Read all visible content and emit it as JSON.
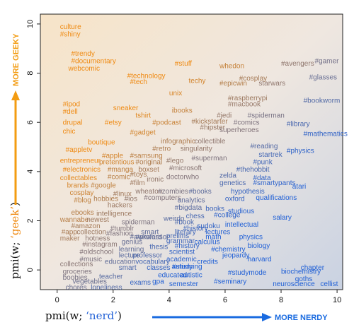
{
  "chart_data": {
    "type": "scatter",
    "title": "",
    "xlabel_prefix": "pmi(w; ",
    "xlabel_term": "‘nerd’",
    "xlabel_suffix": ")",
    "ylabel_prefix": "pmi(w; ",
    "ylabel_term": "‘geek’",
    "ylabel_suffix": ")",
    "x_arrow_label": "MORE NERDY",
    "y_arrow_label": "MORE GEEKY",
    "xlim": [
      -0.6,
      10.2
    ],
    "ylim": [
      -0.8,
      10.4
    ],
    "x_ticks": [
      "0",
      "2",
      "4",
      "6",
      "8",
      "10"
    ],
    "y_ticks": [
      "0",
      "2",
      "4",
      "6",
      "8",
      "10"
    ],
    "grid": false,
    "colors": {
      "geek": "#ef8a12",
      "nerd": "#1f5fd6",
      "mid": "#8a7f90",
      "arrow_y": "#f39c12",
      "arrow_x": "#1a6be0",
      "bg_geek": "#f6e6cf",
      "bg_nerd": "#cfd6e3"
    },
    "points": [
      {
        "label": "culture",
        "x": 0.1,
        "y": 9.8
      },
      {
        "label": "#shiny",
        "x": 0.1,
        "y": 9.5
      },
      {
        "label": "#trendy",
        "x": 0.5,
        "y": 8.7
      },
      {
        "label": "#documentary",
        "x": 0.5,
        "y": 8.4
      },
      {
        "label": "webcomic",
        "x": 0.4,
        "y": 8.1
      },
      {
        "label": "#stuff",
        "x": 4.2,
        "y": 8.3
      },
      {
        "label": "whedon",
        "x": 5.8,
        "y": 8.2
      },
      {
        "label": "#avengers",
        "x": 8.0,
        "y": 8.3
      },
      {
        "label": "#gamer",
        "x": 9.2,
        "y": 8.4
      },
      {
        "label": "#technology",
        "x": 2.5,
        "y": 7.8
      },
      {
        "label": "#tech",
        "x": 2.6,
        "y": 7.55
      },
      {
        "label": "techy",
        "x": 4.7,
        "y": 7.6
      },
      {
        "label": "#cosplay",
        "x": 6.5,
        "y": 7.7
      },
      {
        "label": "#epicwin",
        "x": 5.8,
        "y": 7.5
      },
      {
        "label": "starwars",
        "x": 7.2,
        "y": 7.5
      },
      {
        "label": "#glasses",
        "x": 9.0,
        "y": 7.75
      },
      {
        "label": "unix",
        "x": 4.0,
        "y": 7.1
      },
      {
        "label": "#raspberrypi",
        "x": 6.1,
        "y": 6.9
      },
      {
        "label": "#macbook",
        "x": 6.1,
        "y": 6.65
      },
      {
        "label": "#bookworm",
        "x": 8.8,
        "y": 6.8
      },
      {
        "label": "#ipod",
        "x": 0.2,
        "y": 6.65
      },
      {
        "label": "#dell",
        "x": 0.2,
        "y": 6.35
      },
      {
        "label": "sneaker",
        "x": 2.0,
        "y": 6.5
      },
      {
        "label": "ibooks",
        "x": 4.1,
        "y": 6.4
      },
      {
        "label": "tshirt",
        "x": 2.8,
        "y": 6.2
      },
      {
        "label": "#jedi",
        "x": 5.7,
        "y": 6.2
      },
      {
        "label": "#spiderman",
        "x": 6.8,
        "y": 6.2
      },
      {
        "label": "drupal",
        "x": 0.2,
        "y": 5.9
      },
      {
        "label": "#etsy",
        "x": 1.7,
        "y": 5.9
      },
      {
        "label": "#podcast",
        "x": 3.4,
        "y": 5.9
      },
      {
        "label": "#kickstarter",
        "x": 4.8,
        "y": 5.95
      },
      {
        "label": "#comics",
        "x": 6.3,
        "y": 5.9
      },
      {
        "label": "#library",
        "x": 8.2,
        "y": 5.85
      },
      {
        "label": "chic",
        "x": 0.2,
        "y": 5.55
      },
      {
        "label": "#gadget",
        "x": 2.6,
        "y": 5.5
      },
      {
        "label": "#hipster",
        "x": 5.1,
        "y": 5.7
      },
      {
        "label": "superheroes",
        "x": 5.8,
        "y": 5.6
      },
      {
        "label": "#mathematics",
        "x": 8.8,
        "y": 5.45
      },
      {
        "label": "boutique",
        "x": 1.1,
        "y": 5.1
      },
      {
        "label": "infographic",
        "x": 3.7,
        "y": 5.15
      },
      {
        "label": "collectible",
        "x": 4.9,
        "y": 5.15
      },
      {
        "label": "#appletv",
        "x": 0.3,
        "y": 4.8
      },
      {
        "label": "#retro",
        "x": 3.4,
        "y": 4.85
      },
      {
        "label": "singularity",
        "x": 4.4,
        "y": 4.85
      },
      {
        "label": "#reading",
        "x": 6.9,
        "y": 4.95
      },
      {
        "label": "#apple",
        "x": 1.6,
        "y": 4.55
      },
      {
        "label": "#samsung",
        "x": 2.6,
        "y": 4.55
      },
      {
        "label": "#physics",
        "x": 8.2,
        "y": 4.75
      },
      {
        "label": "entrepreneur",
        "x": 0.1,
        "y": 4.35
      },
      {
        "label": "pretentious",
        "x": 1.5,
        "y": 4.3
      },
      {
        "label": "#original",
        "x": 2.8,
        "y": 4.3
      },
      {
        "label": "#lego",
        "x": 3.9,
        "y": 4.35
      },
      {
        "label": "#superman",
        "x": 4.8,
        "y": 4.45
      },
      {
        "label": "startrek",
        "x": 7.2,
        "y": 4.6
      },
      {
        "label": "#electronics",
        "x": 0.2,
        "y": 4.0
      },
      {
        "label": "#manga",
        "x": 1.8,
        "y": 4.0
      },
      {
        "label": "boxset",
        "x": 2.9,
        "y": 4.0
      },
      {
        "label": "#microsoft",
        "x": 4.0,
        "y": 4.05
      },
      {
        "label": "#punk",
        "x": 7.0,
        "y": 4.3
      },
      {
        "label": "#thehobbit",
        "x": 6.4,
        "y": 4.0
      },
      {
        "label": "collectables",
        "x": 0.1,
        "y": 3.65
      },
      {
        "label": "#comic",
        "x": 1.8,
        "y": 3.7
      },
      {
        "label": "#toys",
        "x": 2.6,
        "y": 3.8
      },
      {
        "label": "ironic",
        "x": 3.2,
        "y": 3.6
      },
      {
        "label": "doctorwho",
        "x": 3.9,
        "y": 3.7
      },
      {
        "label": "zelda",
        "x": 5.8,
        "y": 3.75
      },
      {
        "label": "#data",
        "x": 7.0,
        "y": 3.65
      },
      {
        "label": "brands",
        "x": 0.35,
        "y": 3.35
      },
      {
        "label": "#google",
        "x": 1.2,
        "y": 3.35
      },
      {
        "label": "#film",
        "x": 2.6,
        "y": 3.45
      },
      {
        "label": "genetics",
        "x": 5.8,
        "y": 3.45
      },
      {
        "label": "#smartypants",
        "x": 7.0,
        "y": 3.45
      },
      {
        "label": "atari",
        "x": 8.4,
        "y": 3.3
      },
      {
        "label": "cosplay",
        "x": 0.45,
        "y": 3.05
      },
      {
        "label": "#linux",
        "x": 2.0,
        "y": 3.0
      },
      {
        "label": "wheaton",
        "x": 2.8,
        "y": 3.1
      },
      {
        "label": "#zombies",
        "x": 3.6,
        "y": 3.1
      },
      {
        "label": "#books",
        "x": 4.7,
        "y": 3.1
      },
      {
        "label": "hypothesis",
        "x": 6.2,
        "y": 3.1
      },
      {
        "label": "#blog",
        "x": 0.6,
        "y": 2.75
      },
      {
        "label": "hobbies",
        "x": 1.3,
        "y": 2.8
      },
      {
        "label": "#ios",
        "x": 2.4,
        "y": 2.8
      },
      {
        "label": "#computers",
        "x": 3.1,
        "y": 2.85
      },
      {
        "label": "analytics",
        "x": 4.3,
        "y": 2.75
      },
      {
        "label": "oxford",
        "x": 6.0,
        "y": 2.8
      },
      {
        "label": "qualifications",
        "x": 7.1,
        "y": 2.85
      },
      {
        "label": "hackers",
        "x": 1.8,
        "y": 2.55
      },
      {
        "label": "#bigdata",
        "x": 4.2,
        "y": 2.45
      },
      {
        "label": "books",
        "x": 5.3,
        "y": 2.4
      },
      {
        "label": "studious",
        "x": 6.1,
        "y": 2.3
      },
      {
        "label": "ebooks",
        "x": 0.5,
        "y": 2.25
      },
      {
        "label": "intelligence",
        "x": 1.4,
        "y": 2.2
      },
      {
        "label": "#college",
        "x": 5.6,
        "y": 2.15
      },
      {
        "label": "wannabe",
        "x": 0.1,
        "y": 1.95
      },
      {
        "label": "newest",
        "x": 1.05,
        "y": 1.95
      },
      {
        "label": "chess",
        "x": 4.6,
        "y": 2.1
      },
      {
        "label": "weirdo",
        "x": 3.8,
        "y": 2.0
      },
      {
        "label": "salary",
        "x": 7.7,
        "y": 2.05
      },
      {
        "label": "#amazon",
        "x": 0.5,
        "y": 1.7
      },
      {
        "label": "spiderman",
        "x": 2.3,
        "y": 1.85
      },
      {
        "label": "#book",
        "x": 4.2,
        "y": 1.85
      },
      {
        "label": "sudoku",
        "x": 5.0,
        "y": 1.7
      },
      {
        "label": "intellectual",
        "x": 6.0,
        "y": 1.75
      },
      {
        "label": "#tumblr",
        "x": 1.9,
        "y": 1.6
      },
      {
        "label": "#history",
        "x": 4.5,
        "y": 1.6
      },
      {
        "label": "#app",
        "x": 0.15,
        "y": 1.45
      },
      {
        "label": "collection",
        "x": 0.7,
        "y": 1.45
      },
      {
        "label": "#fashion",
        "x": 1.75,
        "y": 1.4
      },
      {
        "label": "smart",
        "x": 3.0,
        "y": 1.45
      },
      {
        "label": "literary",
        "x": 4.2,
        "y": 1.45
      },
      {
        "label": "lectures",
        "x": 5.3,
        "y": 1.45
      },
      {
        "label": "maker",
        "x": 0.1,
        "y": 1.2
      },
      {
        "label": "hotness",
        "x": 1.0,
        "y": 1.2
      },
      {
        "label": "#awkward",
        "x": 2.6,
        "y": 1.25
      },
      {
        "label": "prelims",
        "x": 3.9,
        "y": 1.3
      },
      {
        "label": "math",
        "x": 5.3,
        "y": 1.25
      },
      {
        "label": "physics",
        "x": 6.5,
        "y": 1.25
      },
      {
        "label": "genius",
        "x": 2.3,
        "y": 1.05
      },
      {
        "label": "#professor",
        "x": 2.8,
        "y": 1.25
      },
      {
        "label": "grammar",
        "x": 3.9,
        "y": 1.1
      },
      {
        "label": "calculus",
        "x": 4.9,
        "y": 1.05
      },
      {
        "label": "#instagram",
        "x": 0.9,
        "y": 0.95
      },
      {
        "label": "thesis",
        "x": 3.3,
        "y": 0.85
      },
      {
        "label": "#history",
        "x": 4.2,
        "y": 0.9
      },
      {
        "label": "#chemistry",
        "x": 5.5,
        "y": 0.75
      },
      {
        "label": "biology",
        "x": 6.8,
        "y": 0.9
      },
      {
        "label": "#oldschool",
        "x": 0.8,
        "y": 0.65
      },
      {
        "label": "learning",
        "x": 2.2,
        "y": 0.75
      },
      {
        "label": "scientist",
        "x": 4.0,
        "y": 0.65
      },
      {
        "label": "jeopardy",
        "x": 5.9,
        "y": 0.5
      },
      {
        "label": "lecture",
        "x": 2.2,
        "y": 0.5
      },
      {
        "label": "professor",
        "x": 2.7,
        "y": 0.5
      },
      {
        "label": "#music",
        "x": 0.8,
        "y": 0.35
      },
      {
        "label": "academic",
        "x": 3.9,
        "y": 0.35
      },
      {
        "label": "credits",
        "x": 5.0,
        "y": 0.25
      },
      {
        "label": "harvard",
        "x": 6.8,
        "y": 0.35
      },
      {
        "label": "collections",
        "x": 0.1,
        "y": 0.15
      },
      {
        "label": "education",
        "x": 1.7,
        "y": 0.25
      },
      {
        "label": "vocabulary",
        "x": 2.8,
        "y": 0.25
      },
      {
        "label": "#studying",
        "x": 4.1,
        "y": 0.05
      },
      {
        "label": "chapter",
        "x": 8.7,
        "y": 0.0
      },
      {
        "label": "groceries",
        "x": 0.2,
        "y": -0.15
      },
      {
        "label": "smart",
        "x": 2.2,
        "y": 0.0
      },
      {
        "label": "classes",
        "x": 3.2,
        "y": 0.0
      },
      {
        "label": "autism",
        "x": 4.1,
        "y": 0.05
      },
      {
        "label": "#studymode",
        "x": 6.1,
        "y": -0.2
      },
      {
        "label": "biochemistry",
        "x": 8.0,
        "y": -0.15
      },
      {
        "label": "boobies",
        "x": 0.2,
        "y": -0.4
      },
      {
        "label": "teacher",
        "x": 1.5,
        "y": -0.35
      },
      {
        "label": "educated",
        "x": 3.6,
        "y": -0.3
      },
      {
        "label": "autistic",
        "x": 4.4,
        "y": -0.3
      },
      {
        "label": "goths",
        "x": 8.5,
        "y": -0.45
      },
      {
        "label": "vegetables",
        "x": 0.55,
        "y": -0.55
      },
      {
        "label": "exams",
        "x": 2.6,
        "y": -0.6
      },
      {
        "label": "gpa",
        "x": 3.4,
        "y": -0.55
      },
      {
        "label": "semester",
        "x": 4.0,
        "y": -0.65
      },
      {
        "label": "#seminary",
        "x": 5.6,
        "y": -0.55
      },
      {
        "label": "neuroscience",
        "x": 7.7,
        "y": -0.65
      },
      {
        "label": "cellist",
        "x": 9.4,
        "y": -0.65
      },
      {
        "label": "chores",
        "x": 0.3,
        "y": -0.8
      },
      {
        "label": "loneliness",
        "x": 1.2,
        "y": -0.8
      }
    ]
  }
}
